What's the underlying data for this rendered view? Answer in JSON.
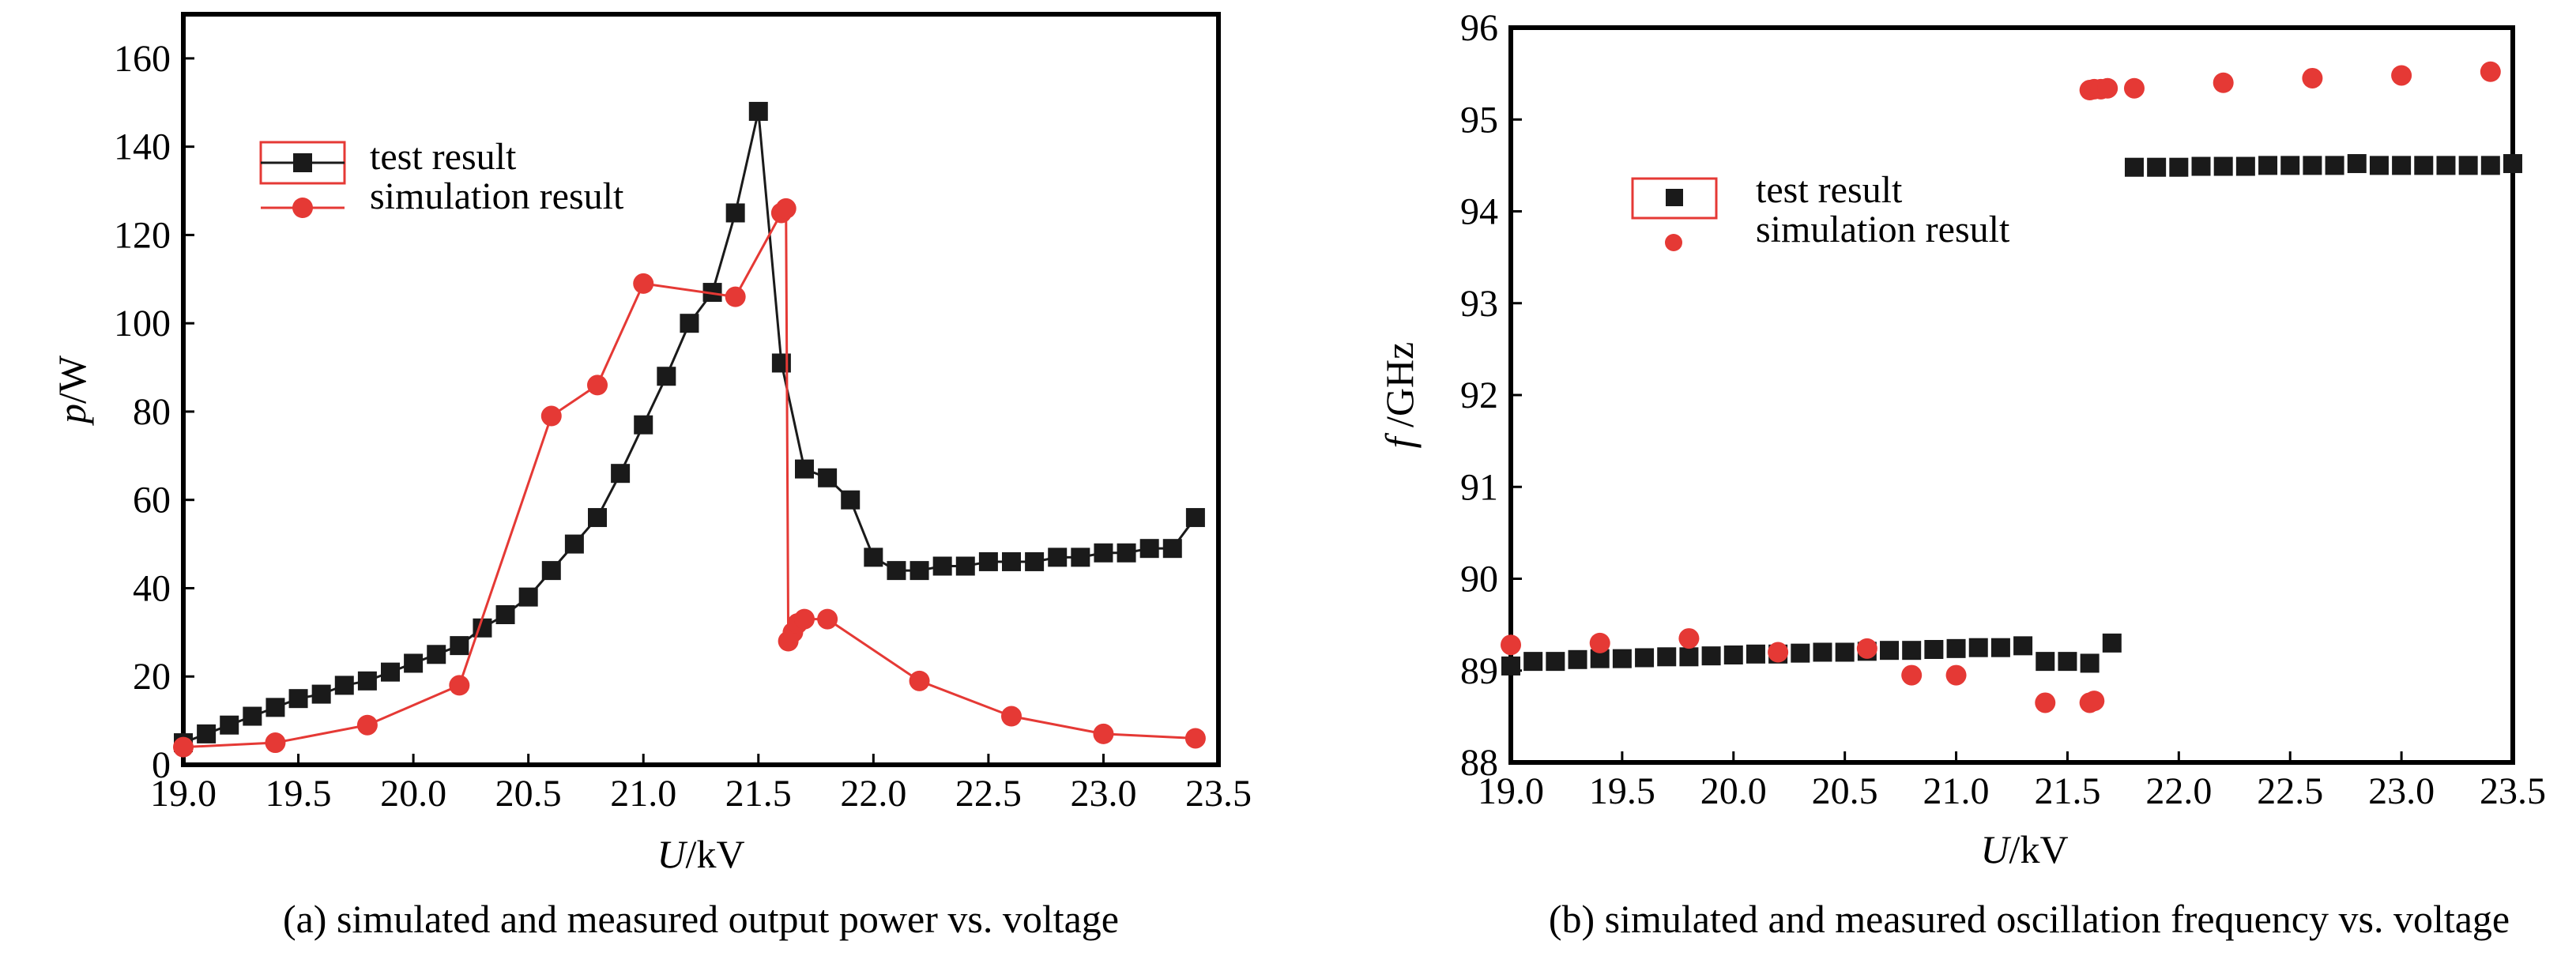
{
  "colors": {
    "test": "#1a1a1a",
    "simulation": "#e53935",
    "axis": "#000000"
  },
  "charts": [
    {
      "caption": "(a) simulated and measured output power vs. voltage",
      "ylabel_var": "p",
      "ylabel_unit": "/W",
      "xlabel_var": "U",
      "xlabel_unit": "/kV",
      "legend": {
        "test": "test result",
        "sim": "simulation result"
      },
      "xticks": [
        "19.0",
        "19.5",
        "20.0",
        "20.5",
        "21.0",
        "21.5",
        "22.0",
        "22.5",
        "23.0",
        "23.5"
      ],
      "yticks": [
        "0",
        "20",
        "40",
        "60",
        "80",
        "100",
        "120",
        "140",
        "160"
      ]
    },
    {
      "caption": "(b) simulated and measured oscillation frequency vs. voltage",
      "ylabel_var": "f",
      "ylabel_unit": " /GHz",
      "xlabel_var": "U",
      "xlabel_unit": "/kV",
      "legend": {
        "test": "test result",
        "sim": "simulation result"
      },
      "xticks": [
        "19.0",
        "19.5",
        "20.0",
        "20.5",
        "21.0",
        "21.5",
        "22.0",
        "22.5",
        "23.0",
        "23.5"
      ],
      "yticks": [
        "88",
        "89",
        "90",
        "91",
        "92",
        "93",
        "94",
        "95",
        "96"
      ]
    }
  ],
  "chart_data": [
    {
      "type": "line",
      "title": "",
      "xlabel": "U/kV",
      "ylabel": "p/W",
      "xlim": [
        19.0,
        23.5
      ],
      "ylim": [
        0,
        170
      ],
      "legend_position": "upper-left",
      "series": [
        {
          "name": "test result",
          "marker": "square",
          "line": true,
          "x": [
            19.0,
            19.1,
            19.2,
            19.3,
            19.4,
            19.5,
            19.6,
            19.7,
            19.8,
            19.9,
            20.0,
            20.1,
            20.2,
            20.3,
            20.4,
            20.5,
            20.6,
            20.7,
            20.8,
            20.9,
            21.0,
            21.1,
            21.2,
            21.3,
            21.4,
            21.5,
            21.6,
            21.7,
            21.8,
            21.9,
            22.0,
            22.1,
            22.2,
            22.3,
            22.4,
            22.5,
            22.6,
            22.7,
            22.8,
            22.9,
            23.0,
            23.1,
            23.2,
            23.3,
            23.4
          ],
          "y": [
            5,
            7,
            9,
            11,
            13,
            15,
            16,
            18,
            19,
            21,
            23,
            25,
            27,
            31,
            34,
            38,
            44,
            50,
            56,
            66,
            77,
            88,
            100,
            107,
            125,
            148,
            91,
            67,
            65,
            60,
            47,
            44,
            44,
            45,
            45,
            46,
            46,
            46,
            47,
            47,
            48,
            48,
            49,
            49,
            56
          ]
        },
        {
          "name": "simulation result",
          "marker": "circle",
          "line": true,
          "x": [
            19.0,
            19.4,
            19.8,
            20.2,
            20.6,
            20.8,
            21.0,
            21.4,
            21.6,
            21.62,
            21.63,
            21.65,
            21.67,
            21.7,
            21.8,
            22.2,
            22.6,
            23.0,
            23.4
          ],
          "y": [
            4,
            5,
            9,
            18,
            79,
            86,
            109,
            106,
            125,
            126,
            28,
            30,
            32,
            33,
            33,
            19,
            11,
            7,
            6
          ]
        }
      ]
    },
    {
      "type": "scatter",
      "title": "",
      "xlabel": "U/kV",
      "ylabel": "f /GHz",
      "xlim": [
        19.0,
        23.5
      ],
      "ylim": [
        88,
        96
      ],
      "legend_position": "upper-left",
      "series": [
        {
          "name": "test result",
          "marker": "square",
          "x": [
            19.0,
            19.1,
            19.2,
            19.3,
            19.4,
            19.5,
            19.6,
            19.7,
            19.8,
            19.9,
            20.0,
            20.1,
            20.2,
            20.3,
            20.4,
            20.5,
            20.6,
            20.7,
            20.8,
            20.9,
            21.0,
            21.1,
            21.2,
            21.3,
            21.4,
            21.5,
            21.6,
            21.7,
            21.8,
            21.9,
            22.0,
            22.1,
            22.2,
            22.3,
            22.4,
            22.5,
            22.6,
            22.7,
            22.8,
            22.9,
            23.0,
            23.1,
            23.2,
            23.3,
            23.4,
            23.5
          ],
          "y": [
            89.05,
            89.1,
            89.1,
            89.12,
            89.13,
            89.13,
            89.14,
            89.15,
            89.15,
            89.16,
            89.17,
            89.18,
            89.18,
            89.19,
            89.2,
            89.2,
            89.21,
            89.22,
            89.22,
            89.23,
            89.24,
            89.25,
            89.25,
            89.27,
            89.1,
            89.1,
            89.08,
            89.3,
            94.48,
            94.48,
            94.48,
            94.49,
            94.49,
            94.49,
            94.5,
            94.5,
            94.5,
            94.5,
            94.52,
            94.5,
            94.5,
            94.5,
            94.5,
            94.5,
            94.5,
            94.52
          ]
        },
        {
          "name": "simulation result",
          "marker": "circle",
          "x": [
            19.0,
            19.4,
            19.8,
            20.2,
            20.6,
            20.8,
            21.0,
            21.4,
            21.6,
            21.62,
            21.6,
            21.62,
            21.65,
            21.68,
            21.8,
            22.2,
            22.6,
            23.0,
            23.4
          ],
          "y": [
            89.28,
            89.3,
            89.35,
            89.2,
            89.24,
            88.95,
            88.95,
            88.65,
            88.65,
            88.67,
            95.32,
            95.33,
            95.33,
            95.34,
            95.34,
            95.4,
            95.45,
            95.48,
            95.52
          ]
        }
      ]
    }
  ]
}
